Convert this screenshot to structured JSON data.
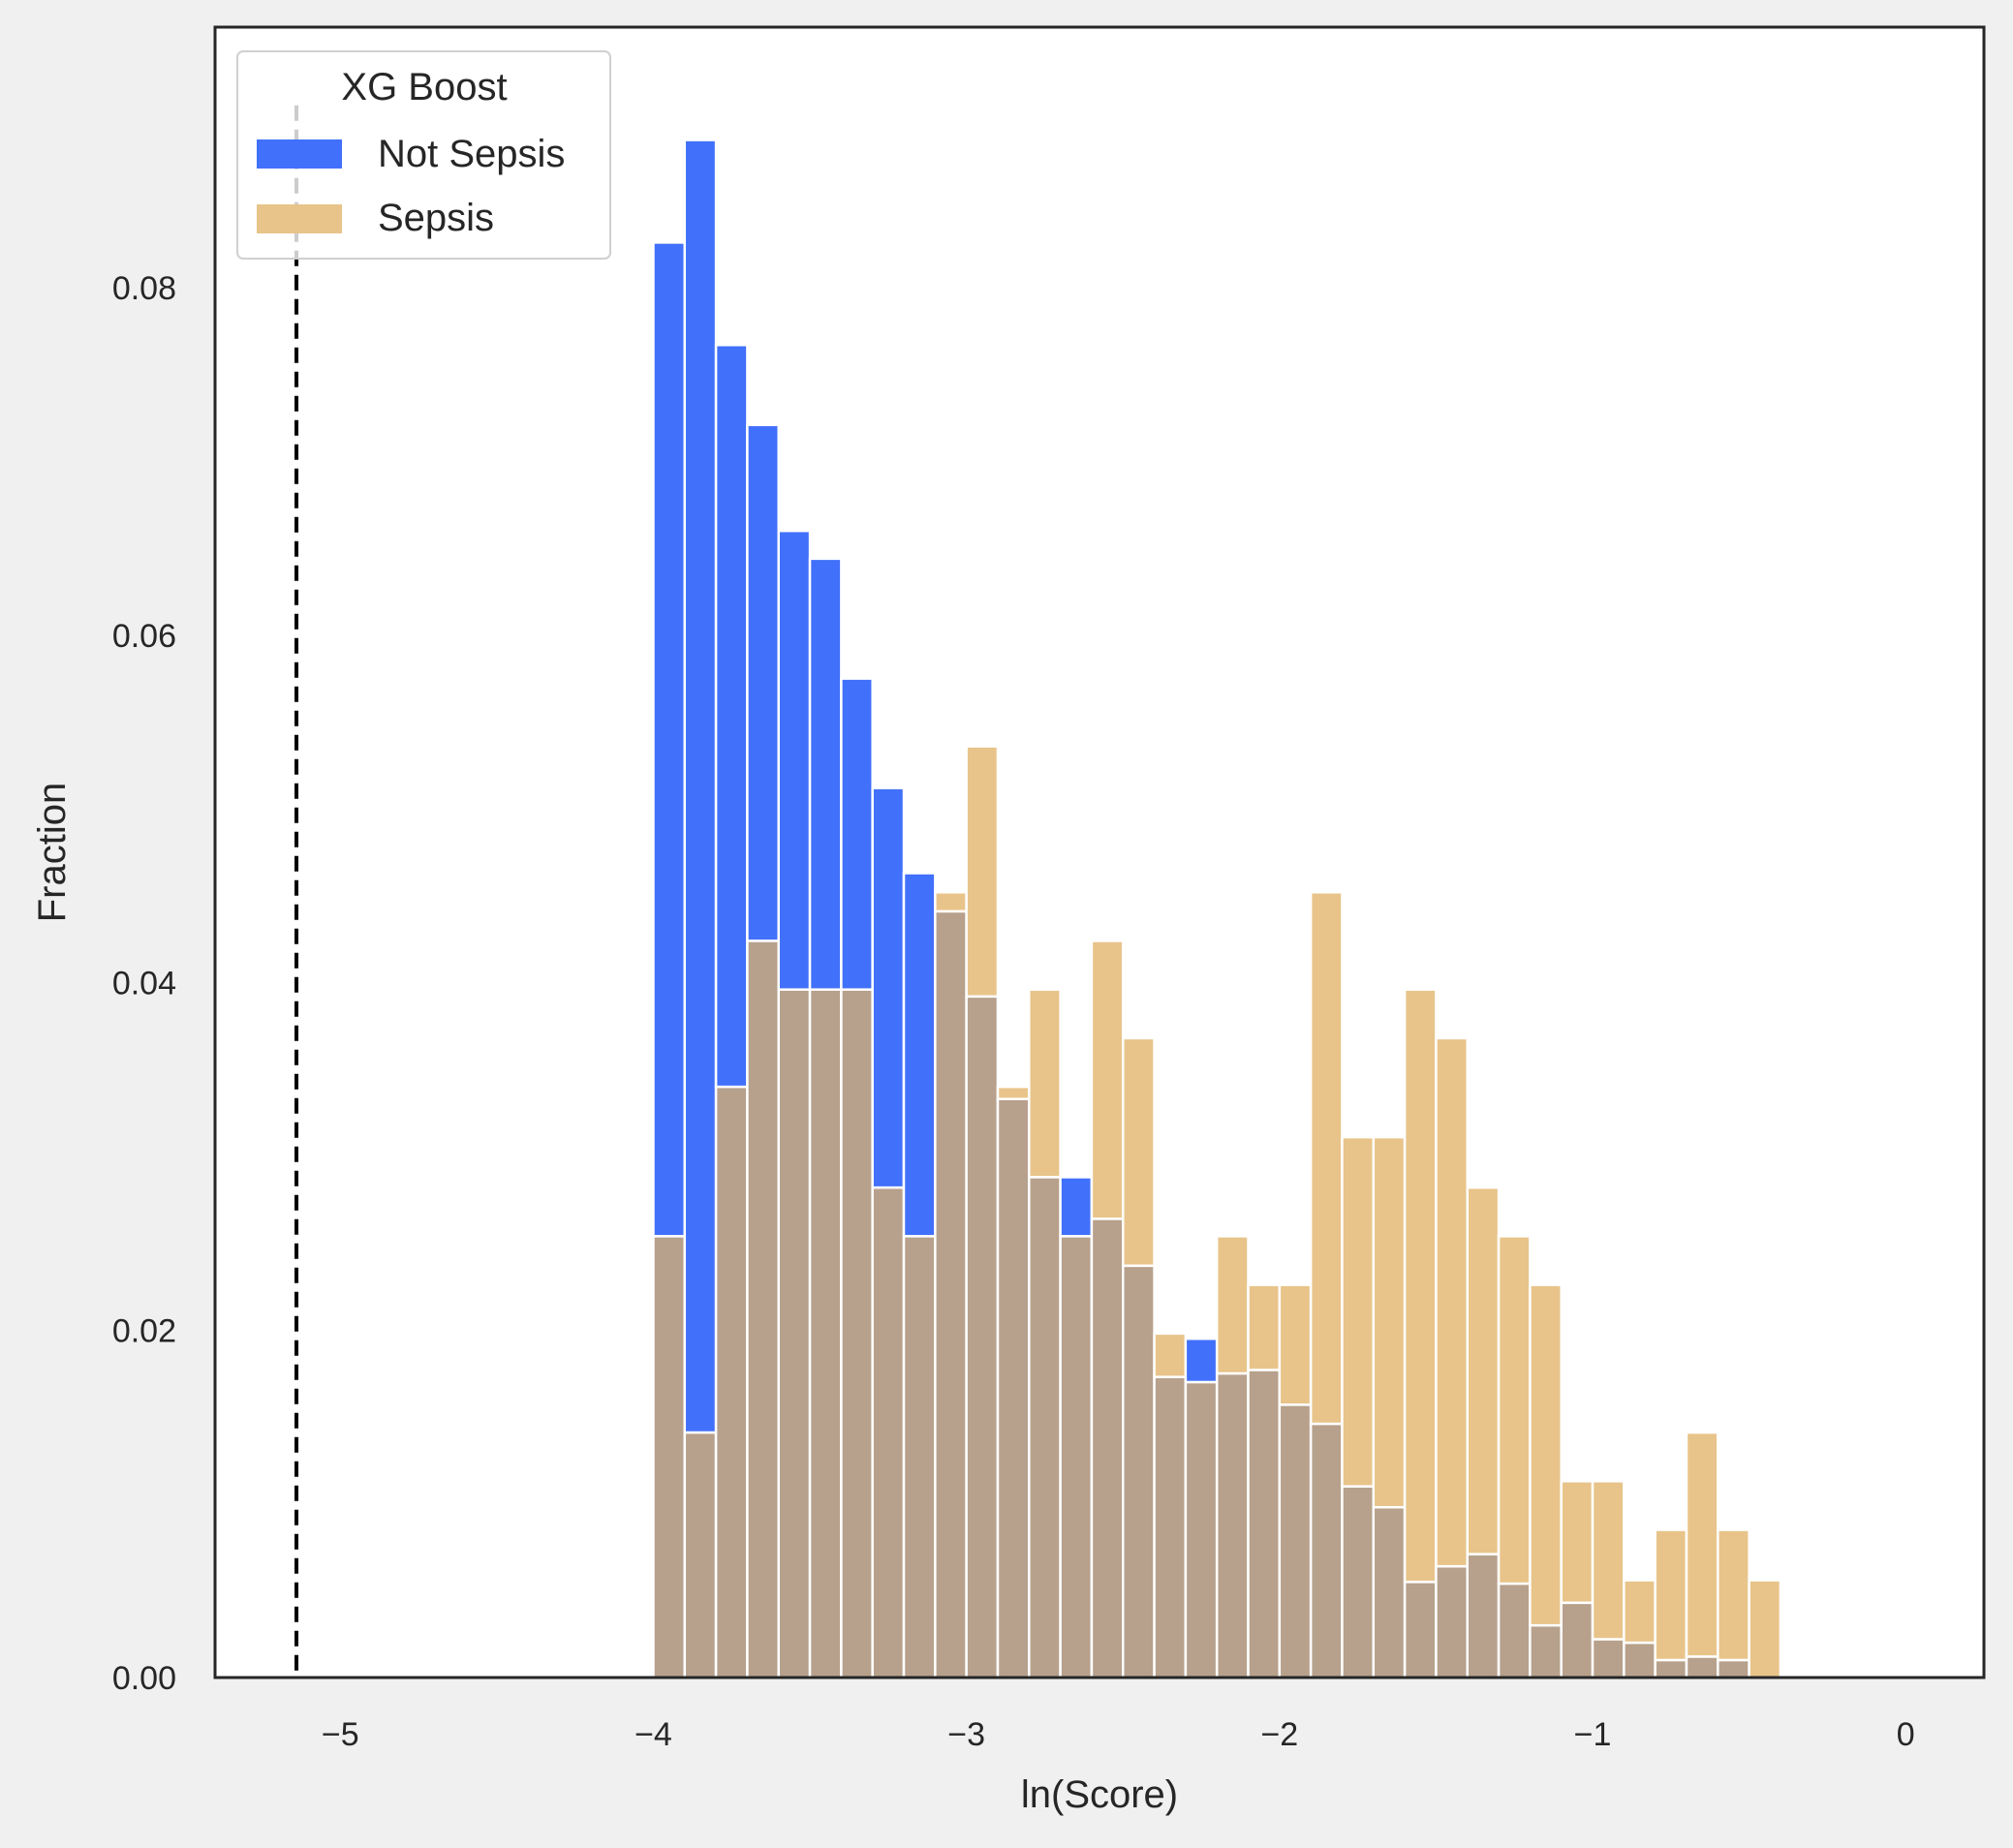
{
  "chart_data": {
    "type": "bar",
    "title": "",
    "xlabel": "ln(Score)",
    "ylabel": "Fraction",
    "xlim": [
      -5.4,
      0.25
    ],
    "ylim": [
      0,
      0.095
    ],
    "grid": false,
    "x_ticks": [
      -5,
      -4,
      -3,
      -2,
      -1,
      0
    ],
    "x_tick_labels": [
      "−5",
      "−4",
      "−3",
      "−2",
      "−1",
      "0"
    ],
    "y_ticks": [
      0,
      0.02,
      0.04,
      0.06,
      0.08
    ],
    "y_tick_labels": [
      "0.00",
      "0.02",
      "0.04",
      "0.06",
      "0.08"
    ],
    "bin_start": -4.0,
    "bin_width": 0.1,
    "threshold_x": -5.14,
    "legend": {
      "title": "XG Boost",
      "position": "top-left"
    },
    "series": [
      {
        "name": "Not Sepsis",
        "color": "#4170fa",
        "values": [
          0.0826,
          0.0885,
          0.0767,
          0.0721,
          0.066,
          0.0644,
          0.0575,
          0.0512,
          0.0463,
          0.0441,
          0.0392,
          0.0333,
          0.0288,
          0.0288,
          0.0264,
          0.0237,
          0.0173,
          0.0195,
          0.0175,
          0.0177,
          0.0157,
          0.0146,
          0.011,
          0.0098,
          0.0055,
          0.0064,
          0.0071,
          0.0054,
          0.003,
          0.0043,
          0.0022,
          0.002,
          0.001,
          0.0012,
          0.001,
          0
        ]
      },
      {
        "name": "Sepsis",
        "color": "#e8c48a",
        "values": [
          0.0254,
          0.0141,
          0.034,
          0.0424,
          0.0396,
          0.0396,
          0.0396,
          0.0282,
          0.0254,
          0.0452,
          0.0536,
          0.034,
          0.0396,
          0.0254,
          0.0424,
          0.0368,
          0.0198,
          0.017,
          0.0254,
          0.0226,
          0.0226,
          0.0452,
          0.0311,
          0.0311,
          0.0396,
          0.0368,
          0.0282,
          0.0254,
          0.0226,
          0.0113,
          0.0113,
          0.0056,
          0.0085,
          0.0141,
          0.0085,
          0.0056
        ]
      }
    ],
    "overlap_color": "#b7a18c"
  }
}
